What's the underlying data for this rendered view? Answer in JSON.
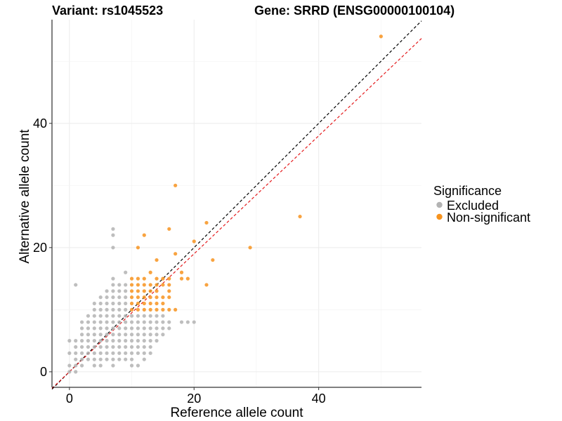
{
  "chart_data": {
    "type": "scatter",
    "title_left": "Variant: rs1045523",
    "title_right": "Gene: SRRD (ENSG00000100104)",
    "xlabel": "Reference allele count",
    "ylabel": "Alternative allele count",
    "xlim": [
      -2.8,
      56.5
    ],
    "ylim": [
      -2.5,
      56.7
    ],
    "xticks": [
      0,
      20,
      40
    ],
    "yticks": [
      0,
      20,
      40
    ],
    "grid": true,
    "legend": {
      "title": "Significance",
      "position": "right",
      "entries": [
        {
          "label": "Excluded",
          "color": "#b3b3b3"
        },
        {
          "label": "Non-significant",
          "color": "#f7931e"
        }
      ]
    },
    "reference_lines": [
      {
        "name": "identity",
        "slope": 1.0,
        "intercept": 0,
        "color": "#000000",
        "style": "dashed"
      },
      {
        "name": "fit",
        "slope": 0.95,
        "intercept": 0,
        "color": "#e41a1c",
        "style": "dashed"
      }
    ],
    "series": [
      {
        "name": "Excluded",
        "color": "#b3b3b3",
        "points": [
          [
            0,
            0
          ],
          [
            0,
            1
          ],
          [
            0,
            3
          ],
          [
            0,
            5
          ],
          [
            1,
            0
          ],
          [
            1,
            1
          ],
          [
            1,
            2
          ],
          [
            1,
            3
          ],
          [
            1,
            4
          ],
          [
            1,
            5
          ],
          [
            1,
            14
          ],
          [
            2,
            1
          ],
          [
            2,
            2
          ],
          [
            2,
            3
          ],
          [
            2,
            4
          ],
          [
            2,
            5
          ],
          [
            2,
            6
          ],
          [
            2,
            7
          ],
          [
            2,
            8
          ],
          [
            3,
            2
          ],
          [
            3,
            3
          ],
          [
            3,
            4
          ],
          [
            3,
            5
          ],
          [
            3,
            6
          ],
          [
            3,
            7
          ],
          [
            3,
            8
          ],
          [
            3,
            9
          ],
          [
            4,
            1
          ],
          [
            4,
            2
          ],
          [
            4,
            3
          ],
          [
            4,
            4
          ],
          [
            4,
            5
          ],
          [
            4,
            6
          ],
          [
            4,
            7
          ],
          [
            4,
            8
          ],
          [
            4,
            9
          ],
          [
            4,
            10
          ],
          [
            4,
            11
          ],
          [
            5,
            1
          ],
          [
            5,
            2
          ],
          [
            5,
            3
          ],
          [
            5,
            4
          ],
          [
            5,
            5
          ],
          [
            5,
            6
          ],
          [
            5,
            7
          ],
          [
            5,
            8
          ],
          [
            5,
            9
          ],
          [
            5,
            10
          ],
          [
            5,
            11
          ],
          [
            5,
            12
          ],
          [
            6,
            2
          ],
          [
            6,
            3
          ],
          [
            6,
            4
          ],
          [
            6,
            5
          ],
          [
            6,
            6
          ],
          [
            6,
            7
          ],
          [
            6,
            8
          ],
          [
            6,
            9
          ],
          [
            6,
            10
          ],
          [
            6,
            11
          ],
          [
            6,
            12
          ],
          [
            6,
            13
          ],
          [
            7,
            1
          ],
          [
            7,
            2
          ],
          [
            7,
            3
          ],
          [
            7,
            4
          ],
          [
            7,
            5
          ],
          [
            7,
            6
          ],
          [
            7,
            7
          ],
          [
            7,
            8
          ],
          [
            7,
            9
          ],
          [
            7,
            10
          ],
          [
            7,
            11
          ],
          [
            7,
            12
          ],
          [
            7,
            13
          ],
          [
            7,
            14
          ],
          [
            7,
            15
          ],
          [
            7,
            20
          ],
          [
            7,
            22
          ],
          [
            7,
            23
          ],
          [
            8,
            2
          ],
          [
            8,
            3
          ],
          [
            8,
            4
          ],
          [
            8,
            5
          ],
          [
            8,
            6
          ],
          [
            8,
            7
          ],
          [
            8,
            8
          ],
          [
            8,
            9
          ],
          [
            8,
            10
          ],
          [
            8,
            11
          ],
          [
            8,
            12
          ],
          [
            8,
            13
          ],
          [
            8,
            14
          ],
          [
            9,
            2
          ],
          [
            9,
            3
          ],
          [
            9,
            4
          ],
          [
            9,
            5
          ],
          [
            9,
            6
          ],
          [
            9,
            7
          ],
          [
            9,
            8
          ],
          [
            9,
            9
          ],
          [
            9,
            10
          ],
          [
            9,
            11
          ],
          [
            9,
            12
          ],
          [
            9,
            13
          ],
          [
            9,
            14
          ],
          [
            9,
            16
          ],
          [
            10,
            1
          ],
          [
            10,
            2
          ],
          [
            10,
            3
          ],
          [
            10,
            4
          ],
          [
            10,
            5
          ],
          [
            10,
            6
          ],
          [
            10,
            7
          ],
          [
            10,
            8
          ],
          [
            10,
            9
          ],
          [
            11,
            1
          ],
          [
            11,
            3
          ],
          [
            11,
            4
          ],
          [
            11,
            5
          ],
          [
            11,
            6
          ],
          [
            11,
            7
          ],
          [
            11,
            8
          ],
          [
            11,
            9
          ],
          [
            12,
            2
          ],
          [
            12,
            3
          ],
          [
            12,
            4
          ],
          [
            12,
            5
          ],
          [
            12,
            6
          ],
          [
            12,
            7
          ],
          [
            12,
            8
          ],
          [
            12,
            9
          ],
          [
            13,
            3
          ],
          [
            13,
            4
          ],
          [
            13,
            5
          ],
          [
            13,
            6
          ],
          [
            13,
            7
          ],
          [
            13,
            8
          ],
          [
            13,
            9
          ],
          [
            14,
            5
          ],
          [
            14,
            6
          ],
          [
            14,
            7
          ],
          [
            14,
            8
          ],
          [
            14,
            9
          ],
          [
            15,
            6
          ],
          [
            15,
            7
          ],
          [
            15,
            8
          ],
          [
            15,
            9
          ],
          [
            16,
            7
          ],
          [
            16,
            8
          ],
          [
            18,
            8
          ],
          [
            19,
            8
          ],
          [
            20,
            8
          ]
        ]
      },
      {
        "name": "Non-significant",
        "color": "#f7931e",
        "points": [
          [
            10,
            10
          ],
          [
            10,
            11
          ],
          [
            10,
            12
          ],
          [
            10,
            13
          ],
          [
            10,
            14
          ],
          [
            10,
            15
          ],
          [
            11,
            10
          ],
          [
            11,
            11
          ],
          [
            11,
            12
          ],
          [
            11,
            13
          ],
          [
            11,
            14
          ],
          [
            11,
            15
          ],
          [
            11,
            20
          ],
          [
            12,
            10
          ],
          [
            12,
            11
          ],
          [
            12,
            12
          ],
          [
            12,
            13
          ],
          [
            12,
            14
          ],
          [
            12,
            15
          ],
          [
            12,
            22
          ],
          [
            13,
            10
          ],
          [
            13,
            11
          ],
          [
            13,
            12
          ],
          [
            13,
            13
          ],
          [
            13,
            14
          ],
          [
            13,
            16
          ],
          [
            14,
            10
          ],
          [
            14,
            11
          ],
          [
            14,
            12
          ],
          [
            14,
            13
          ],
          [
            14,
            14
          ],
          [
            14,
            15
          ],
          [
            14,
            18
          ],
          [
            15,
            10
          ],
          [
            15,
            11
          ],
          [
            15,
            12
          ],
          [
            15,
            14
          ],
          [
            15,
            15
          ],
          [
            16,
            10
          ],
          [
            16,
            12
          ],
          [
            16,
            13
          ],
          [
            16,
            14
          ],
          [
            16,
            15
          ],
          [
            16,
            23
          ],
          [
            17,
            10
          ],
          [
            17,
            19
          ],
          [
            17,
            30
          ],
          [
            18,
            15
          ],
          [
            18,
            16
          ],
          [
            19,
            15
          ],
          [
            20,
            21
          ],
          [
            22,
            14
          ],
          [
            22,
            24
          ],
          [
            23,
            18
          ],
          [
            29,
            20
          ],
          [
            37,
            25
          ],
          [
            50,
            54
          ]
        ]
      }
    ]
  }
}
